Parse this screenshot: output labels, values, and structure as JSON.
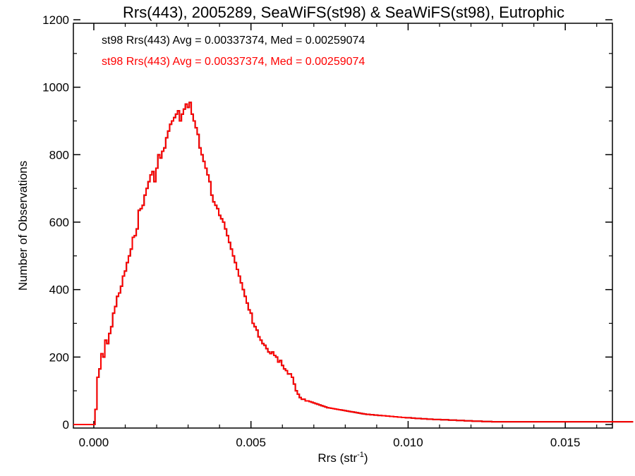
{
  "chart_data": {
    "type": "histogram-step",
    "title": "Rrs(443), 2005289, SeaWiFS(st98) & SeaWiFS(st98), Eutrophic",
    "xlabel": "Rrs (str",
    "xlabel_sup": "-1",
    "xlabel_end": ")",
    "ylabel": "Number of Observations",
    "xlim": [
      -0.00065,
      0.0165
    ],
    "ylim": [
      0,
      1200
    ],
    "xticks": [
      0.0,
      0.005,
      0.01,
      0.015
    ],
    "xtick_labels": [
      "0.000",
      "0.005",
      "0.010",
      "0.015"
    ],
    "yticks": [
      0,
      200,
      400,
      600,
      800,
      1000,
      1200
    ],
    "ytick_labels": [
      "0",
      "200",
      "400",
      "600",
      "800",
      "1000",
      "1200"
    ],
    "grid": false,
    "legend_placement": "top-left",
    "annotations": [
      {
        "text": "st98 Rrs(443) Avg = 0.00337374, Med = 0.00259074",
        "color": "#000000"
      },
      {
        "text": "st98 Rrs(443) Avg = 0.00337374, Med = 0.00259074",
        "color": "#ff0000"
      }
    ],
    "bin_width": 6.25e-05,
    "series": [
      {
        "color": "#000000",
        "x_start": -0.00065,
        "counts": [
          0,
          0,
          0,
          0,
          0,
          0,
          0,
          0,
          0,
          0,
          0,
          45,
          140,
          165,
          210,
          200,
          250,
          240,
          270,
          290,
          330,
          350,
          380,
          390,
          410,
          440,
          455,
          480,
          500,
          520,
          555,
          560,
          580,
          635,
          640,
          650,
          680,
          700,
          720,
          740,
          750,
          720,
          760,
          800,
          790,
          810,
          820,
          850,
          870,
          890,
          900,
          910,
          920,
          930,
          900,
          920,
          935,
          950,
          940,
          955,
          920,
          900,
          880,
          860,
          820,
          800,
          780,
          760,
          740,
          720,
          680,
          660,
          650,
          640,
          620,
          610,
          600,
          580,
          560,
          540,
          520,
          500,
          480,
          460,
          440,
          420,
          400,
          380,
          360,
          340,
          330,
          300,
          290,
          280,
          260,
          250,
          240,
          235,
          225,
          215,
          210,
          215,
          205,
          200,
          185,
          190,
          175,
          165,
          160,
          150,
          150,
          140,
          120,
          100,
          90,
          80,
          75,
          75,
          70,
          70,
          68,
          66,
          64,
          62,
          60,
          58,
          56,
          54,
          52,
          50,
          49,
          48,
          47,
          46,
          45,
          44,
          43,
          42,
          41,
          40,
          39,
          38,
          37,
          36,
          35,
          34,
          33,
          32,
          31,
          30,
          30,
          29,
          29,
          28,
          28,
          27,
          27,
          26,
          26,
          25,
          25,
          24,
          24,
          23,
          23,
          22,
          22,
          21,
          21,
          20,
          20,
          20,
          19,
          19,
          18,
          18,
          18,
          17,
          17,
          17,
          16,
          16,
          16,
          15,
          15,
          15,
          15,
          14,
          14,
          14,
          14,
          13,
          13,
          13,
          13,
          12,
          12,
          12,
          12,
          11,
          11,
          11,
          11,
          10,
          10,
          10,
          10,
          10,
          9,
          9,
          9,
          9,
          9,
          8,
          8,
          8,
          8,
          8,
          8,
          8,
          8,
          8,
          8,
          8,
          8,
          8,
          8,
          8,
          8,
          8,
          8,
          8,
          8,
          8,
          8,
          8,
          8,
          8,
          8,
          8,
          8,
          8,
          8,
          8,
          8,
          8,
          8,
          8,
          8,
          8,
          8,
          8,
          8,
          8,
          8,
          8,
          8,
          8,
          8,
          8,
          8,
          8,
          8,
          8,
          8,
          8,
          8,
          8,
          8,
          8,
          8,
          8,
          8,
          8,
          8,
          8,
          8,
          8,
          8,
          8,
          8,
          8,
          8,
          8,
          8,
          8
        ]
      },
      {
        "color": "#ff0000",
        "x_start": -0.00065,
        "counts": [
          0,
          0,
          0,
          0,
          0,
          0,
          0,
          0,
          0,
          0,
          0,
          45,
          140,
          165,
          210,
          200,
          250,
          240,
          270,
          290,
          330,
          350,
          380,
          390,
          410,
          440,
          455,
          480,
          500,
          520,
          555,
          560,
          580,
          635,
          640,
          650,
          680,
          700,
          720,
          740,
          750,
          720,
          760,
          800,
          790,
          810,
          820,
          850,
          870,
          890,
          900,
          910,
          920,
          930,
          900,
          920,
          935,
          950,
          940,
          955,
          920,
          900,
          880,
          860,
          820,
          800,
          780,
          760,
          740,
          720,
          680,
          660,
          650,
          640,
          620,
          610,
          600,
          580,
          560,
          540,
          520,
          500,
          480,
          460,
          440,
          420,
          400,
          380,
          360,
          340,
          330,
          300,
          290,
          280,
          260,
          250,
          240,
          235,
          225,
          215,
          210,
          215,
          205,
          200,
          185,
          190,
          175,
          165,
          160,
          150,
          150,
          140,
          120,
          100,
          90,
          80,
          75,
          75,
          70,
          70,
          68,
          66,
          64,
          62,
          60,
          58,
          56,
          54,
          52,
          50,
          49,
          48,
          47,
          46,
          45,
          44,
          43,
          42,
          41,
          40,
          39,
          38,
          37,
          36,
          35,
          34,
          33,
          32,
          31,
          30,
          30,
          29,
          29,
          28,
          28,
          27,
          27,
          26,
          26,
          25,
          25,
          24,
          24,
          23,
          23,
          22,
          22,
          21,
          21,
          20,
          20,
          20,
          19,
          19,
          18,
          18,
          18,
          17,
          17,
          17,
          16,
          16,
          16,
          15,
          15,
          15,
          15,
          14,
          14,
          14,
          14,
          13,
          13,
          13,
          13,
          12,
          12,
          12,
          12,
          11,
          11,
          11,
          11,
          10,
          10,
          10,
          10,
          10,
          9,
          9,
          9,
          9,
          9,
          8,
          8,
          8,
          8,
          8,
          8,
          8,
          8,
          8,
          8,
          8,
          8,
          8,
          8,
          8,
          8,
          8,
          8,
          8,
          8,
          8,
          8,
          8,
          8,
          8,
          8,
          8,
          8,
          8,
          8,
          8,
          8,
          8,
          8,
          8,
          8,
          8,
          8,
          8,
          8,
          8,
          8,
          8,
          8,
          8,
          8,
          8,
          8,
          8,
          8,
          8,
          8,
          8,
          8,
          8,
          8,
          8,
          8,
          8,
          8,
          8,
          8,
          8,
          8,
          8,
          8,
          8,
          8,
          8,
          8,
          8,
          8,
          8
        ]
      }
    ]
  }
}
